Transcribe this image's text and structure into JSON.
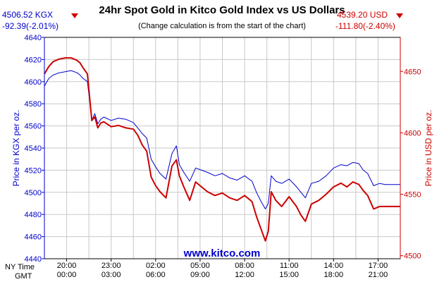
{
  "chart_data": {
    "type": "line",
    "title": "24hr Spot Gold in Kitco Gold Index vs US Dollars",
    "subtitle": "(Change calculation is from the start of the chart)",
    "source": "www.kitco.com",
    "left_header": {
      "value": "4506.52 KGX",
      "change": "-92.39(-2.01%)"
    },
    "right_header": {
      "value": "4539.20 USD",
      "change": "-111.80(-2.40%)"
    },
    "x_axis_label_top": "NY Time",
    "x_axis_label_bottom": "GMT",
    "x_ticks_top": [
      "20:00",
      "23:00",
      "02:00",
      "05:00",
      "08:00",
      "11:00",
      "14:00",
      "17:00"
    ],
    "x_ticks_bottom": [
      "00:00",
      "03:00",
      "06:00",
      "09:00",
      "12:00",
      "15:00",
      "18:00",
      "21:00"
    ],
    "x_tick_hours": [
      1.5,
      4.5,
      7.5,
      10.5,
      13.5,
      16.5,
      19.5,
      22.5
    ],
    "x_range_hours": [
      0,
      24
    ],
    "y_left_label": "Price in KGX per oz.",
    "y_left_range": [
      4440,
      4640
    ],
    "y_left_ticks": [
      "4440",
      "4460",
      "4480",
      "4500",
      "4520",
      "4540",
      "4560",
      "4580",
      "4600",
      "4620",
      "4640"
    ],
    "y_right_label": "Price in USD per oz.",
    "y_right_range": [
      4497.5,
      4677.7
    ],
    "y_right_ticks": [
      "4500",
      "4550",
      "4600",
      "4650"
    ],
    "grid": true,
    "colors": {
      "kgx": "#0000cc",
      "usd": "#cc0000",
      "grid": "#c8c8c8"
    },
    "series": [
      {
        "name": "KGX",
        "axis": "left",
        "x": [
          0,
          0.3,
          0.6,
          1.0,
          1.4,
          1.8,
          2.2,
          2.4,
          2.6,
          2.9,
          3.2,
          3.4,
          3.6,
          3.8,
          4.0,
          4.5,
          5.0,
          5.5,
          6.0,
          6.3,
          6.6,
          6.9,
          7.2,
          7.5,
          7.8,
          8.2,
          8.6,
          8.9,
          9.1,
          9.4,
          9.8,
          10.2,
          10.6,
          11.0,
          11.5,
          12.0,
          12.5,
          13.0,
          13.5,
          14.0,
          14.3,
          14.6,
          14.9,
          15.1,
          15.3,
          15.6,
          16.0,
          16.5,
          17.0,
          17.3,
          17.6,
          18.0,
          18.5,
          19.0,
          19.5,
          20.0,
          20.4,
          20.8,
          21.2,
          21.5,
          21.8,
          22.2,
          22.6,
          23.0,
          24.0
        ],
        "values": [
          4596,
          4603,
          4606,
          4608,
          4609,
          4610,
          4608,
          4606,
          4603,
          4600,
          4565,
          4571,
          4562,
          4566,
          4568,
          4565,
          4567,
          4566,
          4563,
          4558,
          4553,
          4549,
          4530,
          4523,
          4517,
          4512,
          4535,
          4542,
          4525,
          4518,
          4510,
          4522,
          4520,
          4518,
          4515,
          4517,
          4513,
          4511,
          4515,
          4510,
          4500,
          4492,
          4485,
          4490,
          4515,
          4510,
          4508,
          4512,
          4505,
          4500,
          4495,
          4508,
          4510,
          4515,
          4522,
          4525,
          4524,
          4527,
          4526,
          4520,
          4517,
          4506,
          4508,
          4507,
          4507
        ]
      },
      {
        "name": "USD",
        "axis": "right",
        "x": [
          0,
          0.3,
          0.6,
          1.0,
          1.4,
          1.8,
          2.2,
          2.4,
          2.6,
          2.9,
          3.2,
          3.4,
          3.6,
          3.8,
          4.0,
          4.5,
          5.0,
          5.5,
          6.0,
          6.3,
          6.6,
          6.9,
          7.2,
          7.5,
          7.8,
          8.2,
          8.6,
          8.9,
          9.1,
          9.4,
          9.8,
          10.2,
          10.6,
          11.0,
          11.5,
          12.0,
          12.5,
          13.0,
          13.5,
          14.0,
          14.3,
          14.6,
          14.9,
          15.1,
          15.3,
          15.6,
          16.0,
          16.5,
          17.0,
          17.3,
          17.6,
          18.0,
          18.5,
          19.0,
          19.5,
          20.0,
          20.4,
          20.8,
          21.2,
          21.5,
          21.8,
          22.2,
          22.6,
          23.0,
          24.0
        ],
        "values": [
          4648,
          4654,
          4658,
          4660,
          4661,
          4661,
          4659,
          4657,
          4653,
          4648,
          4610,
          4613,
          4604,
          4608,
          4609,
          4605,
          4606,
          4604,
          4603,
          4598,
          4590,
          4585,
          4564,
          4557,
          4552,
          4547,
          4573,
          4578,
          4565,
          4556,
          4545,
          4560,
          4556,
          4552,
          4549,
          4551,
          4547,
          4545,
          4549,
          4544,
          4532,
          4522,
          4512,
          4520,
          4552,
          4545,
          4540,
          4548,
          4540,
          4533,
          4528,
          4542,
          4545,
          4550,
          4556,
          4559,
          4556,
          4560,
          4558,
          4553,
          4549,
          4538,
          4540,
          4540,
          4540
        ]
      }
    ]
  }
}
